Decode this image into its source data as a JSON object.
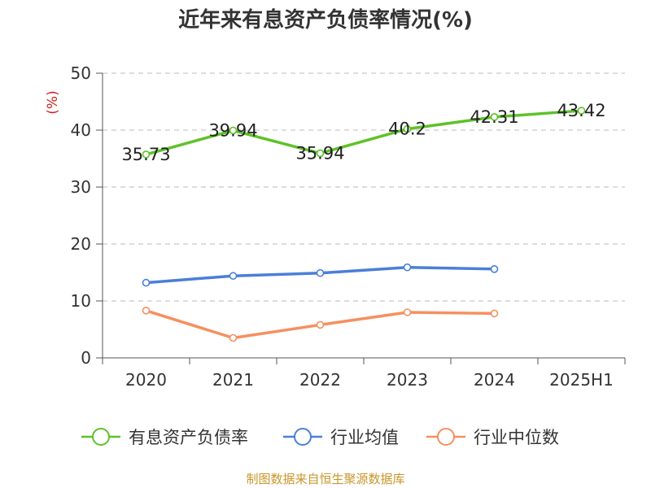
{
  "chart_data": {
    "type": "line",
    "title": "近年来有息资产负债率情况(%)",
    "ylabel": "(%)",
    "categories": [
      "2020",
      "2021",
      "2022",
      "2023",
      "2024",
      "2025H1"
    ],
    "ylim": [
      0,
      50
    ],
    "yticks": [
      0,
      10,
      20,
      30,
      40,
      50
    ],
    "grid": "horizontal-dashed",
    "legend_position": "bottom",
    "series": [
      {
        "name": "有息资产负债率",
        "color": "#5ec22a",
        "values": [
          35.73,
          39.94,
          35.94,
          40.2,
          42.31,
          43.42
        ],
        "labels": [
          "35.73",
          "39.94",
          "35.94",
          "40.2",
          "42.31",
          "43.42"
        ]
      },
      {
        "name": "行业均值",
        "color": "#4a7fd8",
        "values": [
          13.2,
          14.4,
          14.9,
          15.9,
          15.6,
          null
        ]
      },
      {
        "name": "行业中位数",
        "color": "#f59060",
        "values": [
          8.3,
          3.5,
          5.8,
          8.0,
          7.8,
          null
        ]
      }
    ]
  },
  "source": "制图数据来自恒生聚源数据库"
}
